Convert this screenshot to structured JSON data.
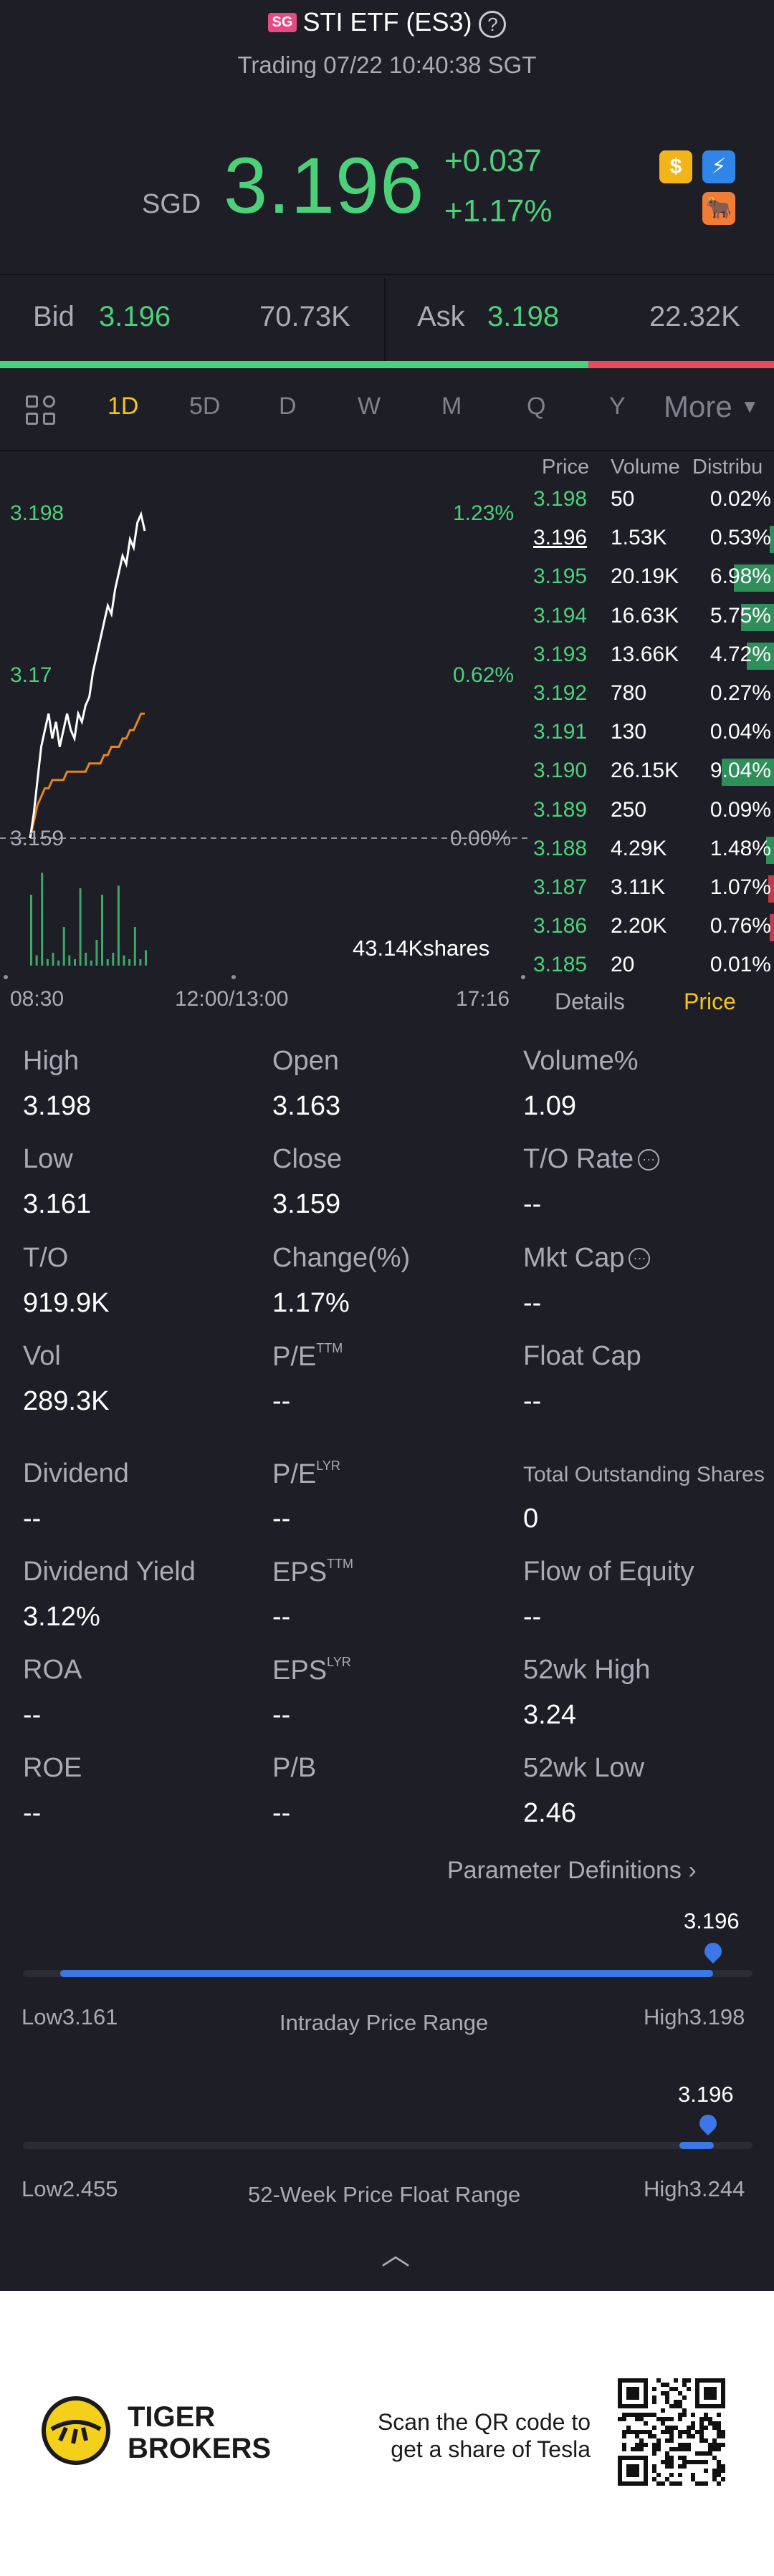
{
  "header": {
    "badge": "SG",
    "title": "STI ETF (ES3)",
    "help": "?",
    "subtitle": "Trading 07/22 10:40:38 SGT"
  },
  "quote": {
    "currency": "SGD",
    "price": "3.196",
    "change": "+0.037",
    "change_pct": "+1.17%",
    "icons": [
      "coin-icon",
      "flash-icon",
      "bull-icon"
    ],
    "icon_glyphs": [
      "$",
      "⚡",
      "🐂"
    ]
  },
  "bidask": {
    "bid_label": "Bid",
    "bid_price": "3.196",
    "bid_size": "70.73K",
    "ask_label": "Ask",
    "ask_price": "3.198",
    "ask_size": "22.32K",
    "bid_share": 0.76
  },
  "tabs": {
    "items": [
      "1D",
      "5D",
      "D",
      "W",
      "M",
      "Q",
      "Y"
    ],
    "active": "1D",
    "more": "More"
  },
  "chart_data": {
    "type": "line",
    "y_labels": {
      "top": "3.198",
      "mid": "3.17",
      "base": "3.159"
    },
    "pct_labels": {
      "top": "1.23%",
      "mid": "0.62%",
      "base": "0.00%"
    },
    "x_labels": [
      "08:30",
      "12:00/13:00",
      "17:16"
    ],
    "volume_label": "43.14Kshares",
    "ylim": [
      3.159,
      3.198
    ],
    "series": [
      {
        "values": [
          3.159,
          3.162,
          3.166,
          3.17,
          3.172,
          3.174,
          3.171,
          3.173,
          3.17,
          3.172,
          3.174,
          3.172,
          3.171,
          3.174,
          3.173,
          3.175,
          3.176,
          3.179,
          3.181,
          3.183,
          3.185,
          3.187,
          3.186,
          3.189,
          3.191,
          3.193,
          3.192,
          3.195,
          3.194,
          3.197,
          3.198,
          3.196
        ]
      },
      {
        "values": [
          3.159,
          3.161,
          3.163,
          3.164,
          3.165,
          3.165,
          3.166,
          3.166,
          3.166,
          3.166,
          3.167,
          3.167,
          3.167,
          3.167,
          3.167,
          3.167,
          3.168,
          3.168,
          3.168,
          3.168,
          3.169,
          3.169,
          3.17,
          3.17,
          3.17,
          3.171,
          3.171,
          3.172,
          3.172,
          3.173,
          3.174,
          3.174
        ]
      }
    ],
    "volume_bars": [
      0.55,
      0.08,
      0.72,
      0.05,
      0.1,
      0.04,
      0.3,
      0.08,
      0.05,
      0.6,
      0.1,
      0.04,
      0.2,
      0.55,
      0.05,
      0.1,
      0.62,
      0.08,
      0.05,
      0.3,
      0.05,
      0.12
    ]
  },
  "orderbook": {
    "headers": [
      "Price",
      "Volume",
      "Distribu"
    ],
    "rows": [
      {
        "price": "3.198",
        "volume": "50",
        "dist": "0.02%",
        "fill": 0.0,
        "color": "green"
      },
      {
        "price": "3.196",
        "volume": "1.53K",
        "dist": "0.53%",
        "fill": 0.04,
        "color": "green",
        "selected": true
      },
      {
        "price": "3.195",
        "volume": "20.19K",
        "dist": "6.98%",
        "fill": 0.4,
        "color": "green"
      },
      {
        "price": "3.194",
        "volume": "16.63K",
        "dist": "5.75%",
        "fill": 0.33,
        "color": "green"
      },
      {
        "price": "3.193",
        "volume": "13.66K",
        "dist": "4.72%",
        "fill": 0.27,
        "color": "green"
      },
      {
        "price": "3.192",
        "volume": "780",
        "dist": "0.27%",
        "fill": 0.0,
        "color": "green"
      },
      {
        "price": "3.191",
        "volume": "130",
        "dist": "0.04%",
        "fill": 0.0,
        "color": "green"
      },
      {
        "price": "3.190",
        "volume": "26.15K",
        "dist": "9.04%",
        "fill": 0.52,
        "color": "green"
      },
      {
        "price": "3.189",
        "volume": "250",
        "dist": "0.09%",
        "fill": 0.0,
        "color": "green"
      },
      {
        "price": "3.188",
        "volume": "4.29K",
        "dist": "1.48%",
        "fill": 0.08,
        "color": "green"
      },
      {
        "price": "3.187",
        "volume": "3.11K",
        "dist": "1.07%",
        "fill": 0.06,
        "color": "red"
      },
      {
        "price": "3.186",
        "volume": "2.20K",
        "dist": "0.76%",
        "fill": 0.04,
        "color": "red"
      },
      {
        "price": "3.185",
        "volume": "20",
        "dist": "0.01%",
        "fill": 0.0,
        "color": "green"
      }
    ],
    "tab_details": "Details",
    "tab_price": "Price"
  },
  "stats": [
    {
      "label": "High",
      "value": "3.198"
    },
    {
      "label": "Open",
      "value": "3.163"
    },
    {
      "label": "Volume%",
      "value": "1.09"
    },
    {
      "label": "Low",
      "value": "3.161"
    },
    {
      "label": "Close",
      "value": "3.159"
    },
    {
      "label": "T/O Rate",
      "value": "--",
      "info": true
    },
    {
      "label": "T/O",
      "value": "919.9K"
    },
    {
      "label": "Change(%)",
      "value": "1.17%"
    },
    {
      "label": "Mkt Cap",
      "value": "--",
      "info": true
    },
    {
      "label": "Vol",
      "value": "289.3K"
    },
    {
      "label": "P/E",
      "sup": "TTM",
      "value": "--"
    },
    {
      "label": "Float Cap",
      "value": "--"
    },
    {
      "label": "Dividend",
      "value": "--"
    },
    {
      "label": "P/E",
      "sup": "LYR",
      "value": "--"
    },
    {
      "label": "Total Outstanding Shares",
      "value": "0",
      "small": true
    },
    {
      "label": "Dividend Yield",
      "value": "3.12%"
    },
    {
      "label": "EPS",
      "sup": "TTM",
      "value": "--"
    },
    {
      "label": "Flow of Equity",
      "value": "--"
    },
    {
      "label": "ROA",
      "value": "--"
    },
    {
      "label": "EPS",
      "sup": "LYR",
      "value": "--"
    },
    {
      "label": "52wk High",
      "value": "3.24"
    },
    {
      "label": "ROE",
      "value": "--"
    },
    {
      "label": "P/B",
      "value": "--"
    },
    {
      "label": "52wk Low",
      "value": "2.46"
    }
  ],
  "param_link": "Parameter Definitions",
  "intraday": {
    "current": "3.196",
    "low_label": "Low",
    "low": "3.161",
    "title": "Intraday Price Range",
    "high_label": "High",
    "high": "3.198",
    "position": 0.946
  },
  "week52": {
    "current": "3.196",
    "low_label": "Low",
    "low": "2.455",
    "title": "52-Week Price Float Range",
    "high_label": "High",
    "high": "3.244",
    "position": 0.939
  },
  "footer": {
    "brand_line1": "TIGER",
    "brand_line2": "BROKERS",
    "scan_line1": "Scan the QR code to",
    "scan_line2": "get a share of Tesla"
  }
}
